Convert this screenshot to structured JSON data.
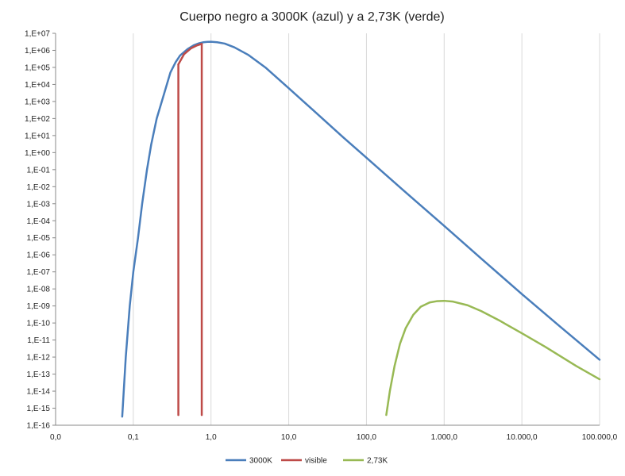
{
  "chart_data": {
    "type": "line",
    "title": "Cuerpo negro a 3000K (azul) y a 2,73K (verde)",
    "xlabel": "",
    "ylabel": "",
    "x_scale": "log",
    "y_scale": "log",
    "xlim": [
      0.01,
      100000
    ],
    "ylim": [
      1e-16,
      10000000.0
    ],
    "grid": "vertical",
    "legend_position": "bottom",
    "x_ticks": [
      {
        "value": 0.01,
        "label": "0,0"
      },
      {
        "value": 0.1,
        "label": "0,1"
      },
      {
        "value": 1,
        "label": "1,0"
      },
      {
        "value": 10,
        "label": "10,0"
      },
      {
        "value": 100,
        "label": "100,0"
      },
      {
        "value": 1000,
        "label": "1.000,0"
      },
      {
        "value": 10000,
        "label": "10.000,0"
      },
      {
        "value": 100000,
        "label": "100.000,0"
      }
    ],
    "y_ticks": [
      {
        "value": 10000000.0,
        "label": "1,E+07"
      },
      {
        "value": 1000000.0,
        "label": "1,E+06"
      },
      {
        "value": 100000.0,
        "label": "1,E+05"
      },
      {
        "value": 10000.0,
        "label": "1,E+04"
      },
      {
        "value": 1000.0,
        "label": "1,E+03"
      },
      {
        "value": 100.0,
        "label": "1,E+02"
      },
      {
        "value": 10.0,
        "label": "1,E+01"
      },
      {
        "value": 1.0,
        "label": "1,E+00"
      },
      {
        "value": 0.1,
        "label": "1,E-01"
      },
      {
        "value": 0.01,
        "label": "1,E-02"
      },
      {
        "value": 0.001,
        "label": "1,E-03"
      },
      {
        "value": 0.0001,
        "label": "1,E-04"
      },
      {
        "value": 1e-05,
        "label": "1,E-05"
      },
      {
        "value": 1e-06,
        "label": "1,E-06"
      },
      {
        "value": 1e-07,
        "label": "1,E-07"
      },
      {
        "value": 1e-08,
        "label": "1,E-08"
      },
      {
        "value": 1e-09,
        "label": "1,E-09"
      },
      {
        "value": 1e-10,
        "label": "1,E-10"
      },
      {
        "value": 1e-11,
        "label": "1,E-11"
      },
      {
        "value": 1e-12,
        "label": "1,E-12"
      },
      {
        "value": 1e-13,
        "label": "1,E-13"
      },
      {
        "value": 1e-14,
        "label": "1,E-14"
      },
      {
        "value": 1e-15,
        "label": "1,E-15"
      },
      {
        "value": 1e-16,
        "label": "1,E-16"
      }
    ],
    "series": [
      {
        "name": "3000K",
        "color": "#4A7EBB",
        "points": [
          [
            0.072,
            3.2e-16
          ],
          [
            0.08,
            1e-12
          ],
          [
            0.09,
            1e-09
          ],
          [
            0.1,
            1e-07
          ],
          [
            0.115,
            1e-05
          ],
          [
            0.13,
            0.001
          ],
          [
            0.15,
            0.1
          ],
          [
            0.17,
            3
          ],
          [
            0.2,
            100
          ],
          [
            0.25,
            3000
          ],
          [
            0.3,
            50000
          ],
          [
            0.35,
            200000
          ],
          [
            0.4,
            500000
          ],
          [
            0.5,
            1200000.0
          ],
          [
            0.6,
            2000000.0
          ],
          [
            0.7,
            2600000.0
          ],
          [
            0.8,
            3000000.0
          ],
          [
            0.9,
            3150000.0
          ],
          [
            1.0,
            3200000.0
          ],
          [
            1.2,
            3000000.0
          ],
          [
            1.5,
            2500000.0
          ],
          [
            2,
            1500000.0
          ],
          [
            3,
            550000.0
          ],
          [
            5,
            100000.0
          ],
          [
            10,
            6000
          ],
          [
            20,
            350
          ],
          [
            50,
            8
          ],
          [
            100,
            0.5
          ],
          [
            300,
            0.006
          ],
          [
            1000,
            5e-05
          ],
          [
            3000,
            6e-07
          ],
          [
            10000,
            5e-09
          ],
          [
            30000,
            7e-11
          ],
          [
            100000,
            7e-13
          ]
        ]
      },
      {
        "name": "visible",
        "color": "#BE4B48",
        "segments": [
          [
            [
              0.38,
              4e-16
            ],
            [
              0.38,
              150000.0
            ]
          ],
          [
            [
              0.38,
              150000.0
            ],
            [
              0.45,
              600000.0
            ],
            [
              0.55,
              1300000.0
            ],
            [
              0.65,
              1900000.0
            ],
            [
              0.76,
              2400000.0
            ]
          ],
          [
            [
              0.76,
              2400000.0
            ],
            [
              0.76,
              4e-16
            ]
          ]
        ]
      },
      {
        "name": "2,73K",
        "color": "#98B954",
        "points": [
          [
            180,
            4e-16
          ],
          [
            200,
            1e-14
          ],
          [
            230,
            3e-13
          ],
          [
            270,
            6e-12
          ],
          [
            320,
            5e-11
          ],
          [
            400,
            3e-10
          ],
          [
            500,
            9e-10
          ],
          [
            650,
            1.6e-09
          ],
          [
            800,
            1.9e-09
          ],
          [
            1000,
            2e-09
          ],
          [
            1300,
            1.8e-09
          ],
          [
            2000,
            1.1e-09
          ],
          [
            3000,
            5e-10
          ],
          [
            5000,
            1.5e-10
          ],
          [
            10000,
            2.5e-11
          ],
          [
            20000,
            4e-12
          ],
          [
            50000,
            3e-13
          ],
          [
            100000,
            5e-14
          ]
        ]
      }
    ]
  }
}
